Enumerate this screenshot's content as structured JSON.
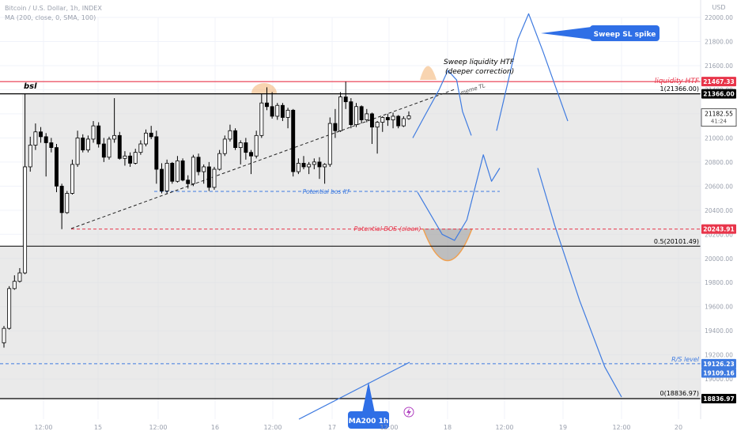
{
  "header": {
    "symbol": "Bitcoin / U.S. Dollar, 1h, INDEX",
    "indicator": "MA (200, close, 0, SMA, 100)"
  },
  "colors": {
    "candle_up": "#ffffff",
    "candle_down": "#000000",
    "box_fill": "#dcdcdc",
    "red": "#e8354a",
    "blue_line": "#3f7be0",
    "callout_blue": "#2f6fe6",
    "orange": "#f0a050",
    "grid": "#f0f3fa"
  },
  "icons": [
    "flash-icon"
  ],
  "chart_data": {
    "type": "candlestick",
    "y_axis": {
      "currency": "USD",
      "ticks": [
        22000,
        21800,
        21600,
        21400,
        21200,
        21000,
        20800,
        20600,
        20400,
        20200,
        20000,
        19800,
        19600,
        19400,
        19200,
        19000
      ],
      "range": [
        18790,
        22050
      ]
    },
    "x_axis": {
      "ticks": [
        "12:00",
        "15",
        "12:00",
        "16",
        "12:00",
        "17",
        "12:00",
        "18",
        "12:00",
        "19",
        "12:00",
        "20"
      ]
    },
    "candles": [
      [
        19300,
        19440,
        19260,
        19420
      ],
      [
        19420,
        19770,
        19410,
        19750
      ],
      [
        19750,
        19860,
        19740,
        19810
      ],
      [
        19810,
        19920,
        19800,
        19880
      ],
      [
        19880,
        21366,
        19870,
        20760
      ],
      [
        20760,
        21010,
        20720,
        20940
      ],
      [
        20940,
        21120,
        20900,
        21050
      ],
      [
        21050,
        21090,
        20960,
        21010
      ],
      [
        21010,
        21040,
        20680,
        20960
      ],
      [
        20960,
        21000,
        20880,
        20920
      ],
      [
        20920,
        20950,
        20550,
        20600
      ],
      [
        20600,
        20620,
        20243,
        20380
      ],
      [
        20380,
        20560,
        20370,
        20540
      ],
      [
        20540,
        20820,
        20530,
        20780
      ],
      [
        20780,
        21060,
        20760,
        21000
      ],
      [
        21000,
        21030,
        20880,
        20900
      ],
      [
        20900,
        21020,
        20880,
        20990
      ],
      [
        20990,
        21140,
        20960,
        21100
      ],
      [
        21100,
        21130,
        20920,
        20950
      ],
      [
        20950,
        21000,
        20800,
        20840
      ],
      [
        20840,
        21010,
        20820,
        20990
      ],
      [
        20990,
        21330,
        20960,
        21020
      ],
      [
        21020,
        21050,
        20820,
        20830
      ],
      [
        20830,
        20890,
        20770,
        20850
      ],
      [
        20850,
        20880,
        20760,
        20790
      ],
      [
        20790,
        20910,
        20780,
        20880
      ],
      [
        20880,
        20980,
        20860,
        20950
      ],
      [
        20950,
        21070,
        20930,
        21040
      ],
      [
        21040,
        21100,
        20990,
        21010
      ],
      [
        21010,
        21060,
        20620,
        20740
      ],
      [
        20740,
        20790,
        20540,
        20560
      ],
      [
        20560,
        20820,
        20540,
        20790
      ],
      [
        20790,
        20800,
        20620,
        20640
      ],
      [
        20640,
        20850,
        20630,
        20810
      ],
      [
        20810,
        20830,
        20640,
        20650
      ],
      [
        20650,
        20690,
        20580,
        20620
      ],
      [
        20620,
        20860,
        20600,
        20840
      ],
      [
        20840,
        20870,
        20690,
        20720
      ],
      [
        20720,
        20780,
        20620,
        20760
      ],
      [
        20760,
        20800,
        20560,
        20590
      ],
      [
        20590,
        20760,
        20570,
        20740
      ],
      [
        20740,
        20900,
        20730,
        20870
      ],
      [
        20870,
        21020,
        20850,
        20990
      ],
      [
        20990,
        21110,
        20970,
        21060
      ],
      [
        21060,
        21080,
        20900,
        20920
      ],
      [
        20920,
        20980,
        20780,
        20960
      ],
      [
        20960,
        21000,
        20820,
        20880
      ],
      [
        20880,
        20900,
        20700,
        20850
      ],
      [
        20850,
        21060,
        20830,
        21020
      ],
      [
        21020,
        21370,
        21000,
        21290
      ],
      [
        21290,
        21420,
        21230,
        21260
      ],
      [
        21260,
        21380,
        21160,
        21180
      ],
      [
        21180,
        21290,
        21150,
        21270
      ],
      [
        21270,
        21290,
        21140,
        21170
      ],
      [
        21170,
        21250,
        21080,
        21230
      ],
      [
        21230,
        21240,
        20680,
        20720
      ],
      [
        20720,
        20830,
        20700,
        20790
      ],
      [
        20790,
        20850,
        20740,
        20760
      ],
      [
        20760,
        20800,
        20700,
        20780
      ],
      [
        20780,
        20830,
        20740,
        20800
      ],
      [
        20800,
        20840,
        20660,
        20760
      ],
      [
        20760,
        20790,
        20620,
        20780
      ],
      [
        20780,
        21170,
        20760,
        21120
      ],
      [
        21120,
        21240,
        21000,
        21060
      ],
      [
        21060,
        21380,
        21050,
        21340
      ],
      [
        21340,
        21467,
        21240,
        21300
      ],
      [
        21300,
        21330,
        21080,
        21110
      ],
      [
        21110,
        21290,
        21090,
        21260
      ],
      [
        21260,
        21270,
        21120,
        21150
      ],
      [
        21150,
        21240,
        21130,
        21200
      ],
      [
        21200,
        21210,
        20950,
        21090
      ],
      [
        21090,
        21140,
        20870,
        21130
      ],
      [
        21130,
        21180,
        21050,
        21170
      ],
      [
        21170,
        21200,
        21100,
        21150
      ],
      [
        21150,
        21210,
        21080,
        21180
      ],
      [
        21180,
        21190,
        21080,
        21100
      ],
      [
        21100,
        21180,
        21090,
        21160
      ],
      [
        21160,
        21220,
        21150,
        21182.55
      ]
    ],
    "levels": [
      {
        "value": 21467.33,
        "label": "liquidity HTF",
        "badge": "21467.33",
        "color": "#e8354a"
      },
      {
        "value": 21366.0,
        "label": "1(21366.00)",
        "badge": "21366.00",
        "color": "#000000"
      },
      {
        "value": 20243.91,
        "label": "Potential BOS (clean)",
        "badge": "20243.91",
        "color": "#e8354a"
      },
      {
        "value": 20101.49,
        "label": "0.5(20101.49)",
        "color": "#000000"
      },
      {
        "value": 19126.23,
        "label": "R/S level",
        "badge": "19126.23",
        "color": "#3f7be0"
      },
      {
        "value": 19109.16,
        "badge": "19109.16",
        "color": "#3f7be0"
      },
      {
        "value": 18836.97,
        "label": "0(18836.97)",
        "badge": "18836.97",
        "color": "#000000"
      }
    ],
    "annotations": {
      "bsl": "bsl",
      "sweep": [
        "Sweep liquidity HTF",
        "(deeper correction)"
      ],
      "meme_tl": "meme TL",
      "potential_bos_ltf": "Potential bos ltf",
      "callout_sweep": "Sweep SL spike",
      "callout_ma": "MA200 1h"
    },
    "current_price": {
      "value": "21182.55",
      "countdown": "41:24"
    },
    "projection_paths": [
      [
        [
          21000,
          0
        ],
        [
          21180,
          0.2
        ],
        [
          21400,
          0.45
        ],
        [
          21560,
          0.6
        ],
        [
          21480,
          0.75
        ],
        [
          21220,
          0.85
        ],
        [
          21020,
          1.0
        ]
      ],
      [
        [
          20550,
          0
        ],
        [
          20200,
          0.3
        ],
        [
          20150,
          0.45
        ],
        [
          20320,
          0.6
        ],
        [
          20860,
          0.8
        ],
        [
          20640,
          0.9
        ],
        [
          20750,
          1.0
        ]
      ],
      [
        [
          21060,
          0
        ],
        [
          21820,
          0.3
        ],
        [
          22030,
          0.45
        ],
        [
          21720,
          0.65
        ],
        [
          21140,
          1.0
        ]
      ],
      [
        [
          20750,
          0
        ],
        [
          20280,
          0.2
        ],
        [
          19650,
          0.5
        ],
        [
          19100,
          0.8
        ],
        [
          18850,
          1.0
        ]
      ]
    ]
  }
}
